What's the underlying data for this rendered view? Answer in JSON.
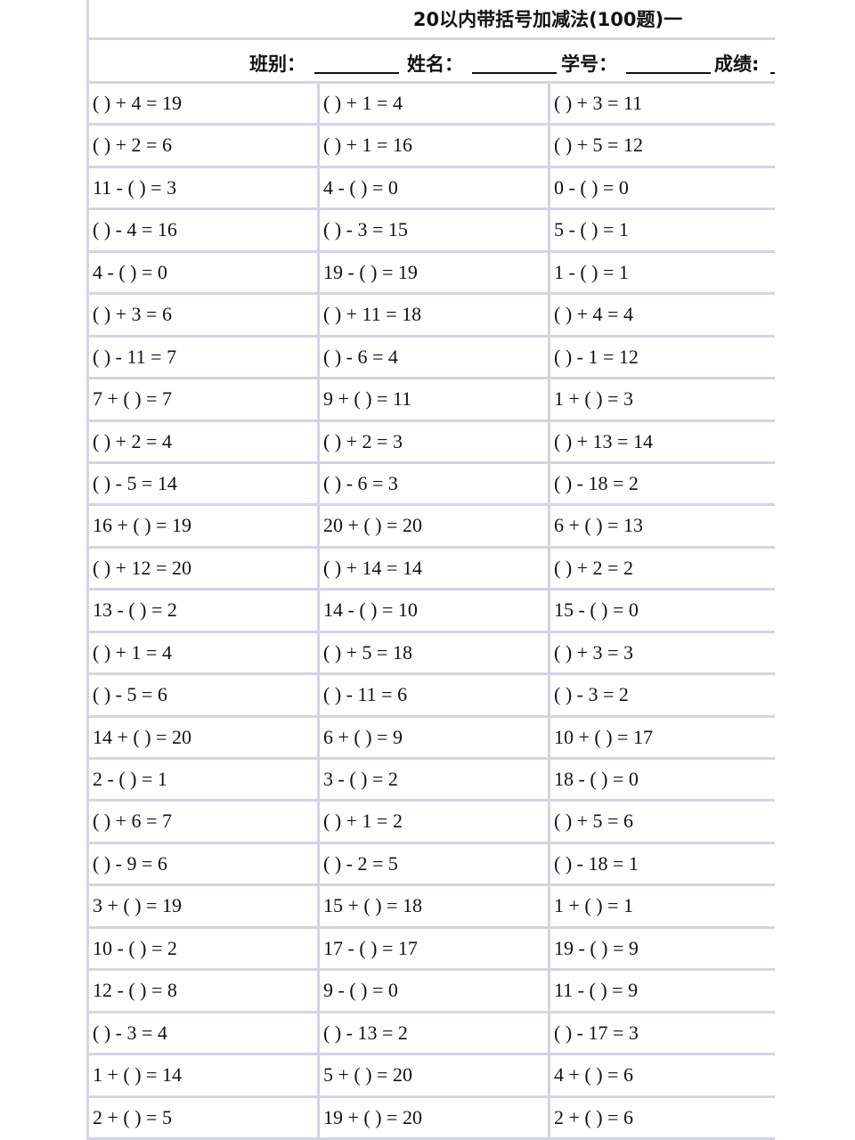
{
  "header": {
    "title": "20以内带括号加减法(100题)一",
    "fields": [
      "班别：",
      "姓名：",
      "学号：",
      "成绩:"
    ]
  },
  "table": {
    "rows": [
      [
        "( ) + 4 = 19",
        "( ) + 1 = 4",
        "( ) + 3 = 11"
      ],
      [
        "( ) + 2 = 6",
        "( ) + 1 = 16",
        "( ) + 5 = 12"
      ],
      [
        "11 - ( ) = 3",
        "4 - ( ) = 0",
        "0 - ( ) = 0"
      ],
      [
        "( ) - 4 = 16",
        "( ) - 3 = 15",
        "5 - ( ) = 1"
      ],
      [
        "4 - ( ) = 0",
        "19 - ( ) = 19",
        "1 - ( ) = 1"
      ],
      [
        "( ) + 3 = 6",
        "( ) + 11 = 18",
        "( ) + 4 = 4"
      ],
      [
        "( ) - 11 = 7",
        "( ) - 6 = 4",
        "( ) - 1 = 12"
      ],
      [
        "7 + ( ) = 7",
        "9 + ( ) = 11",
        "1 + ( ) = 3"
      ],
      [
        "( ) + 2 = 4",
        "( ) + 2 = 3",
        "( ) + 13 = 14"
      ],
      [
        "( ) - 5 = 14",
        "( ) - 6 = 3",
        "( ) - 18 = 2"
      ],
      [
        "16 + ( ) = 19",
        "20 + ( ) = 20",
        "6 + ( ) = 13"
      ],
      [
        "( ) + 12 = 20",
        "( ) + 14 = 14",
        "( ) + 2 = 2"
      ],
      [
        "13 - ( ) = 2",
        "14 - ( ) = 10",
        "15 - ( ) = 0"
      ],
      [
        "( ) + 1 = 4",
        "( ) + 5 = 18",
        "( ) + 3 = 3"
      ],
      [
        "( ) - 5 = 6",
        "( ) - 11 = 6",
        "( ) - 3 = 2"
      ],
      [
        "14 + ( ) = 20",
        "6 + ( ) = 9",
        "10 + ( ) = 17"
      ],
      [
        "2 - ( ) = 1",
        "3 - ( ) = 2",
        "18 - ( ) = 0"
      ],
      [
        "( ) + 6 = 7",
        "( ) + 1 = 2",
        "( ) + 5 = 6"
      ],
      [
        "( ) - 9 = 6",
        "( ) - 2 = 5",
        "( ) - 18 = 1"
      ],
      [
        "3 + ( ) = 19",
        "15 + ( ) = 18",
        "1 + ( ) = 1"
      ],
      [
        "10 - ( ) = 2",
        "17 - ( ) = 17",
        "19 - ( ) = 9"
      ],
      [
        "12 - ( ) = 8",
        "9 - ( ) = 0",
        "11 - ( ) = 9"
      ],
      [
        "( ) - 3 = 4",
        "( ) - 13 = 2",
        "( ) - 17 = 3"
      ],
      [
        "1 + ( ) = 14",
        "5 + ( ) = 20",
        "4 + ( ) = 6"
      ],
      [
        "2 + ( ) = 5",
        "19 + ( ) = 20",
        "2 + ( ) = 6"
      ]
    ]
  }
}
